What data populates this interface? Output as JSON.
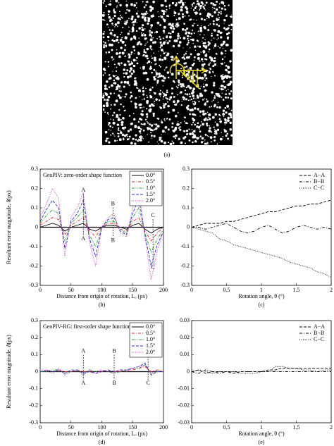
{
  "image_caption": "(a)",
  "chart_data": [
    {
      "type": "line",
      "title": "GeoPIV: zero-order shape function",
      "caption": "(b)",
      "x_label": "Distance from origin of rotation, Lₒ (px)",
      "y_label": "Resultant error magnitude, δ̄(px)",
      "xlim": [
        0,
        200
      ],
      "xticks": [
        0,
        50,
        100,
        150,
        200
      ],
      "ylim": [
        -0.3,
        0.3
      ],
      "yticks": [
        -0.3,
        -0.2,
        -0.1,
        0,
        0.1,
        0.2,
        0.3
      ],
      "zero_line": true,
      "legend": "upper right",
      "legend_frame": true,
      "x": [
        0,
        10,
        20,
        30,
        40,
        50,
        60,
        70,
        80,
        90,
        100,
        110,
        120,
        130,
        140,
        150,
        160,
        170,
        180,
        190,
        200
      ],
      "series": [
        {
          "name": "0.0°",
          "color": "#000000",
          "style": "solid",
          "values": [
            0,
            0.01,
            0.02,
            0.01,
            -0.02,
            0,
            0.01,
            0.02,
            -0.01,
            -0.02,
            0,
            0.01,
            0.01,
            0,
            -0.01,
            0.01,
            0.02,
            -0.01,
            -0.03,
            -0.01,
            0
          ]
        },
        {
          "name": "0.5°",
          "color": "#e02020",
          "style": "dashdot",
          "values": [
            0.01,
            0.03,
            0.05,
            0.04,
            -0.04,
            0.01,
            0.03,
            0.05,
            -0.02,
            -0.05,
            0,
            0.02,
            0.02,
            -0.01,
            -0.02,
            0.03,
            0.05,
            -0.02,
            -0.07,
            -0.03,
            0
          ]
        },
        {
          "name": "1.0°",
          "color": "#20a020",
          "style": "dashdotdot",
          "values": [
            0.02,
            0.06,
            0.09,
            0.07,
            -0.07,
            0.02,
            0.05,
            0.09,
            -0.04,
            -0.1,
            0,
            0.03,
            0.03,
            -0.01,
            -0.03,
            0.05,
            0.1,
            -0.03,
            -0.13,
            -0.06,
            -0.01
          ]
        },
        {
          "name": "1.5°",
          "color": "#2030c0",
          "style": "dashed",
          "values": [
            0.03,
            0.09,
            0.14,
            0.1,
            -0.11,
            0.03,
            0.07,
            0.14,
            -0.06,
            -0.15,
            0,
            0.04,
            0.05,
            -0.02,
            -0.04,
            0.07,
            0.15,
            -0.04,
            -0.2,
            -0.09,
            -0.02
          ]
        },
        {
          "name": "2.0°",
          "color": "#e020e0",
          "style": "dotted",
          "values": [
            0.05,
            0.12,
            0.2,
            0.15,
            -0.15,
            0.05,
            0.1,
            0.18,
            -0.08,
            -0.2,
            0,
            0.05,
            0.07,
            -0.03,
            -0.05,
            0.1,
            0.2,
            -0.05,
            -0.27,
            -0.12,
            -0.02
          ]
        }
      ],
      "annotations": [
        {
          "labels": [
            "A",
            "A"
          ],
          "x": 70,
          "y": [
            0.19,
            -0.06
          ]
        },
        {
          "labels": [
            "B",
            "B"
          ],
          "x": 118,
          "y": [
            0.12,
            -0.07
          ]
        },
        {
          "labels": [
            "C",
            "C"
          ],
          "x": 183,
          "y": [
            0.06,
            -0.21
          ]
        }
      ]
    },
    {
      "type": "line",
      "caption": "(c)",
      "x_label": "Rotation angle, θ (°)",
      "xlim": [
        0,
        2
      ],
      "xticks": [
        0,
        0.5,
        1,
        1.5,
        2
      ],
      "ylim": [
        -0.3,
        0.3
      ],
      "yticks": [
        -0.3,
        -0.2,
        -0.1,
        0,
        0.1,
        0.2,
        0.3
      ],
      "zero_line": false,
      "legend": "upper right",
      "legend_frame": false,
      "x": [
        0,
        0.1,
        0.2,
        0.3,
        0.4,
        0.5,
        0.6,
        0.7,
        0.8,
        0.9,
        1,
        1.1,
        1.2,
        1.3,
        1.4,
        1.5,
        1.6,
        1.7,
        1.8,
        1.9,
        2
      ],
      "series": [
        {
          "name": "A−A",
          "color": "#000000",
          "style": "dashed",
          "values": [
            0,
            0.01,
            0.02,
            0.02,
            0.02,
            0.03,
            0.03,
            0.04,
            0.05,
            0.06,
            0.07,
            0.08,
            0.08,
            0.09,
            0.1,
            0.11,
            0.11,
            0.12,
            0.12,
            0.13,
            0.14
          ]
        },
        {
          "name": "B−B",
          "color": "#000000",
          "style": "dashdot",
          "values": [
            0,
            0,
            -0.01,
            0,
            0.01,
            0.02,
            0,
            -0.02,
            -0.03,
            -0.02,
            0,
            0.01,
            -0.01,
            -0.03,
            -0.02,
            0,
            0.01,
            0,
            -0.01,
            0,
            -0.01
          ]
        },
        {
          "name": "C−C",
          "color": "#000000",
          "style": "dotted",
          "values": [
            0,
            -0.01,
            -0.02,
            -0.03,
            -0.06,
            -0.07,
            -0.09,
            -0.1,
            -0.11,
            -0.12,
            -0.13,
            -0.14,
            -0.15,
            -0.16,
            -0.18,
            -0.19,
            -0.2,
            -0.21,
            -0.23,
            -0.24,
            -0.26
          ]
        }
      ]
    },
    {
      "type": "line",
      "title": "GeoPIV-RG: first-order shape function",
      "caption": "(d)",
      "x_label": "Distance from origin of rotation, Lₒ (px)",
      "y_label": "Resultant error magnitude, δ̄(px)",
      "xlim": [
        0,
        200
      ],
      "xticks": [
        0,
        50,
        100,
        150,
        200
      ],
      "ylim": [
        -0.3,
        0.3
      ],
      "yticks": [
        -0.3,
        -0.2,
        -0.1,
        0,
        0.1,
        0.2,
        0.3
      ],
      "zero_line": true,
      "legend": "upper right",
      "legend_frame": true,
      "x": [
        0,
        10,
        20,
        30,
        40,
        50,
        60,
        70,
        80,
        90,
        100,
        110,
        120,
        130,
        140,
        150,
        160,
        170,
        180,
        190,
        200
      ],
      "series": [
        {
          "name": "0.0°",
          "color": "#000000",
          "style": "solid",
          "values": [
            0,
            0,
            0,
            0,
            0,
            0,
            0,
            0,
            0,
            0,
            0,
            0,
            0,
            0,
            0,
            0,
            0,
            0,
            0,
            0,
            0
          ]
        },
        {
          "name": "0.5°",
          "color": "#e02020",
          "style": "dashdot",
          "values": [
            0,
            0.01,
            0,
            0.01,
            0,
            0,
            0.01,
            0,
            0,
            -0.01,
            0,
            0.01,
            0,
            0,
            0.01,
            0.01,
            0.02,
            0.03,
            0,
            0.01,
            0
          ]
        },
        {
          "name": "1.0°",
          "color": "#20a020",
          "style": "dashdotdot",
          "values": [
            0,
            0,
            0.01,
            0.01,
            -0.01,
            0,
            0.01,
            -0.01,
            0.01,
            0,
            0.01,
            0,
            -0.01,
            0,
            0.01,
            0.02,
            0.02,
            0.04,
            -0.01,
            0,
            0
          ]
        },
        {
          "name": "1.5°",
          "color": "#2030c0",
          "style": "dashed",
          "values": [
            0,
            0.01,
            0,
            0.01,
            -0.01,
            0.01,
            0.01,
            -0.01,
            0,
            -0.01,
            0,
            0.01,
            0,
            0.01,
            0.01,
            0.02,
            0.03,
            0.05,
            -0.02,
            0,
            0
          ]
        },
        {
          "name": "2.0°",
          "color": "#e020e0",
          "style": "dotted",
          "values": [
            0,
            0.01,
            -0.01,
            0.02,
            -0.02,
            0,
            0.01,
            -0.02,
            0.01,
            -0.01,
            0.01,
            0,
            -0.01,
            0.01,
            0,
            0.02,
            0.03,
            0.04,
            -0.01,
            0.01,
            0
          ]
        }
      ],
      "annotations": [
        {
          "labels": [
            "A",
            "A"
          ],
          "x": 70,
          "y": [
            0.12,
            -0.07
          ]
        },
        {
          "labels": [
            "B",
            "B"
          ],
          "x": 120,
          "y": [
            0.12,
            -0.07
          ]
        },
        {
          "labels": [
            "C",
            "C"
          ],
          "x": 175,
          "y": [
            0.11,
            -0.07
          ]
        }
      ]
    },
    {
      "type": "line",
      "caption": "(e)",
      "x_label": "Rotation angle, θ (°)",
      "xlim": [
        0,
        2
      ],
      "xticks": [
        0,
        0.5,
        1,
        1.5,
        2
      ],
      "ylim": [
        -0.03,
        0.03
      ],
      "yticks": [
        -0.03,
        -0.02,
        -0.01,
        0,
        0.01,
        0.02,
        0.03
      ],
      "zero_line": false,
      "legend": "upper right",
      "legend_frame": false,
      "x": [
        0,
        0.1,
        0.2,
        0.3,
        0.4,
        0.5,
        0.6,
        0.7,
        0.8,
        0.9,
        1,
        1.1,
        1.2,
        1.3,
        1.4,
        1.5,
        1.6,
        1.7,
        1.8,
        1.9,
        2
      ],
      "series": [
        {
          "name": "A−A",
          "color": "#000000",
          "style": "dashed",
          "values": [
            0,
            0.001,
            -0.001,
            0,
            0,
            0,
            -0.001,
            0,
            0,
            0,
            0,
            0.001,
            0.001,
            0.002,
            0.002,
            0.002,
            0.002,
            0.002,
            0.002,
            0.002,
            0.002
          ]
        },
        {
          "name": "B−B",
          "color": "#000000",
          "style": "dashdot",
          "values": [
            0,
            -0.001,
            0.001,
            0,
            -0.001,
            0,
            0,
            0,
            0,
            0,
            0,
            0,
            0,
            0,
            0,
            0,
            0,
            0,
            0,
            0,
            0
          ]
        },
        {
          "name": "C−C",
          "color": "#000000",
          "style": "dotted",
          "values": [
            0,
            0.001,
            0,
            -0.001,
            0,
            0,
            0,
            -0.001,
            -0.001,
            -0.001,
            0,
            0,
            0.003,
            0.003,
            0.002,
            0.002,
            0.001,
            0.001,
            0,
            0.001,
            0.001
          ]
        }
      ]
    }
  ]
}
